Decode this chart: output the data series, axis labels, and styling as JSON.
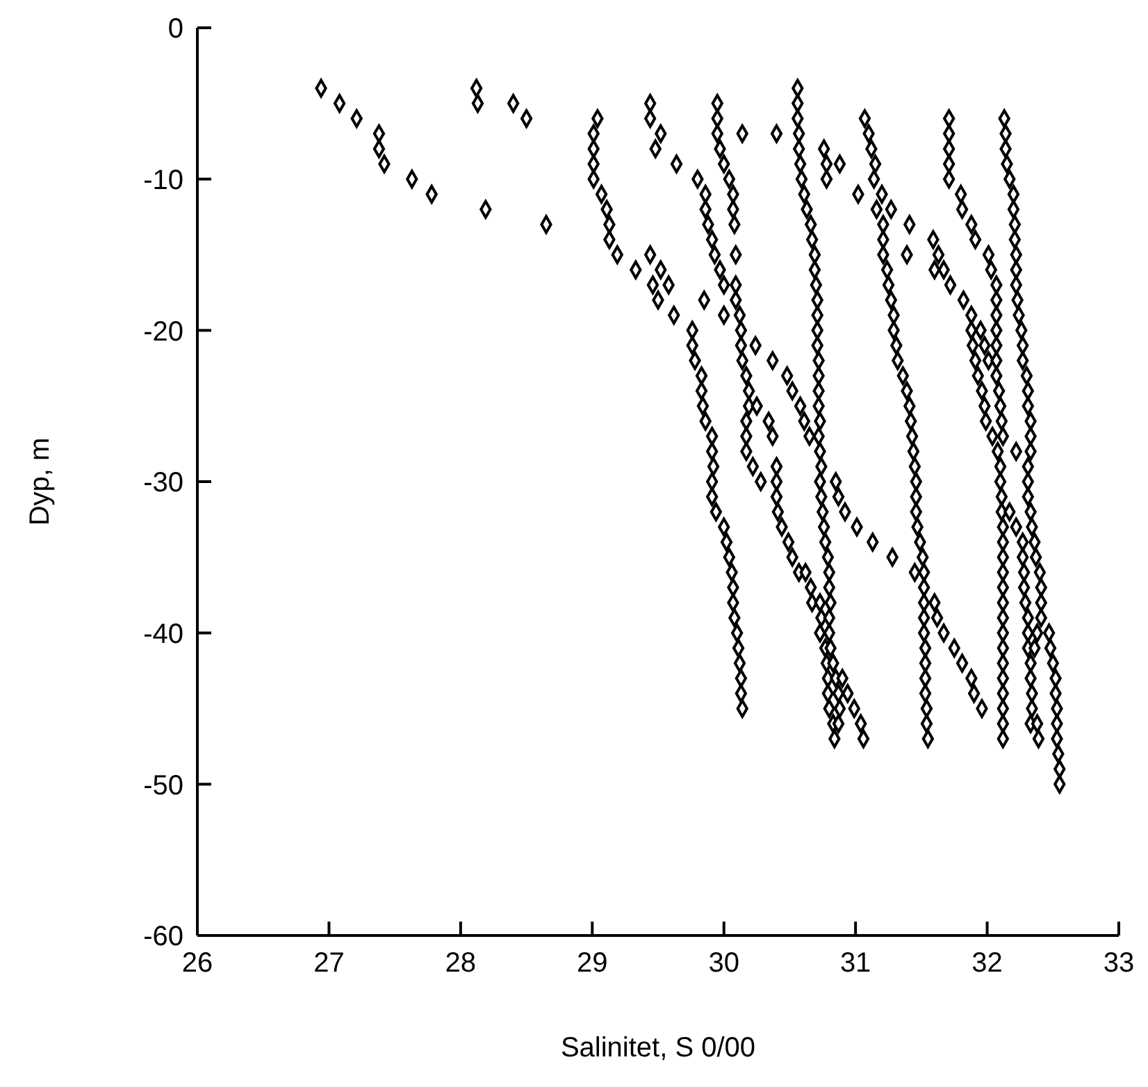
{
  "chart_data": {
    "type": "scatter",
    "xlabel": "Salinitet, S 0/00",
    "ylabel": "Dyp, m",
    "xlim": [
      26,
      33
    ],
    "xticks": [
      26,
      27,
      28,
      29,
      30,
      31,
      32,
      33
    ],
    "ylim": [
      -60,
      0
    ],
    "yticks": [
      -60,
      -50,
      -40,
      -30,
      -20,
      -10,
      0
    ],
    "marker": "diamond",
    "grid": false,
    "legend": false,
    "series": [
      {
        "color": "#000000",
        "x": [
          26.94,
          28.12,
          30.56,
          27.08,
          28.13,
          28.4,
          29.44,
          29.95,
          30.56,
          27.21,
          28.5,
          29.04,
          29.44,
          29.95,
          30.56,
          31.07,
          31.71,
          32.13,
          27.38,
          29.01,
          29.52,
          29.95,
          30.14,
          30.4,
          30.57,
          31.1,
          31.71,
          32.14,
          27.38,
          29.01,
          29.48,
          29.97,
          30.57,
          30.76,
          31.12,
          31.71,
          32.14,
          27.42,
          29.01,
          29.64,
          30.0,
          30.58,
          30.78,
          30.88,
          31.15,
          31.71,
          32.15,
          27.63,
          29.01,
          29.8,
          30.04,
          30.59,
          30.78,
          31.14,
          31.71,
          32.17,
          27.78,
          29.07,
          29.86,
          30.07,
          30.61,
          31.02,
          31.2,
          31.8,
          32.2,
          28.19,
          29.11,
          29.86,
          30.07,
          30.63,
          31.16,
          31.27,
          31.81,
          32.2,
          28.65,
          29.13,
          29.88,
          30.08,
          30.66,
          31.21,
          31.41,
          31.88,
          32.21,
          29.13,
          29.91,
          30.67,
          31.21,
          31.59,
          31.91,
          32.21,
          29.19,
          29.44,
          29.93,
          30.09,
          30.69,
          31.21,
          31.39,
          31.63,
          32.01,
          32.22,
          29.33,
          29.52,
          29.97,
          30.69,
          31.24,
          31.6,
          31.67,
          32.03,
          32.22,
          29.46,
          29.58,
          30.0,
          30.09,
          30.7,
          31.25,
          31.72,
          32.07,
          32.22,
          29.5,
          29.85,
          30.09,
          30.71,
          31.27,
          31.82,
          32.07,
          32.23,
          29.62,
          30.0,
          30.12,
          30.71,
          31.29,
          31.88,
          32.07,
          32.24,
          29.76,
          30.13,
          30.71,
          31.29,
          31.88,
          31.95,
          32.07,
          32.26,
          29.76,
          30.13,
          30.24,
          30.71,
          31.31,
          31.89,
          31.98,
          32.07,
          32.27,
          29.78,
          30.14,
          30.37,
          30.72,
          31.32,
          31.91,
          32.01,
          32.07,
          32.27,
          29.83,
          30.17,
          30.48,
          30.72,
          31.36,
          31.93,
          32.07,
          32.3,
          29.83,
          30.19,
          30.52,
          30.72,
          31.39,
          31.96,
          32.09,
          32.31,
          29.84,
          30.19,
          30.25,
          30.58,
          30.72,
          31.41,
          31.98,
          32.1,
          32.31,
          29.86,
          30.17,
          30.34,
          30.61,
          30.73,
          31.42,
          31.99,
          32.11,
          32.33,
          29.91,
          30.17,
          30.37,
          30.65,
          30.72,
          31.43,
          32.04,
          32.12,
          32.33,
          29.91,
          30.17,
          30.73,
          31.44,
          32.08,
          32.22,
          32.33,
          29.92,
          30.22,
          30.4,
          30.74,
          31.45,
          32.1,
          32.31,
          29.91,
          30.28,
          30.4,
          30.73,
          30.85,
          31.46,
          32.1,
          32.31,
          29.91,
          30.4,
          30.74,
          30.87,
          31.46,
          32.11,
          32.31,
          29.94,
          30.41,
          30.75,
          30.92,
          31.46,
          32.11,
          32.17,
          32.33,
          30.0,
          30.44,
          30.76,
          31.01,
          31.47,
          32.12,
          32.22,
          32.34,
          30.02,
          30.49,
          30.77,
          31.13,
          31.49,
          32.12,
          32.27,
          32.36,
          30.04,
          30.52,
          30.79,
          31.28,
          31.51,
          32.12,
          32.27,
          32.37,
          30.06,
          30.57,
          30.62,
          30.8,
          31.45,
          31.52,
          32.12,
          32.28,
          32.4,
          30.07,
          30.66,
          30.8,
          31.52,
          32.12,
          32.28,
          32.41,
          30.07,
          30.67,
          30.73,
          30.81,
          31.52,
          31.6,
          32.12,
          32.29,
          32.41,
          30.08,
          30.74,
          30.8,
          31.52,
          31.62,
          32.12,
          32.31,
          32.41,
          30.1,
          30.73,
          30.8,
          31.52,
          31.67,
          32.12,
          32.31,
          32.38,
          32.47,
          30.11,
          30.77,
          30.81,
          31.53,
          31.75,
          32.12,
          32.31,
          32.36,
          32.48,
          30.12,
          30.78,
          30.83,
          31.53,
          31.81,
          32.12,
          32.33,
          32.5,
          30.13,
          30.79,
          30.85,
          30.9,
          31.53,
          31.88,
          32.12,
          32.33,
          32.52,
          30.13,
          30.79,
          30.87,
          30.94,
          31.53,
          31.9,
          32.12,
          32.34,
          32.52,
          30.14,
          30.8,
          30.88,
          30.99,
          31.54,
          31.96,
          32.12,
          32.34,
          32.53,
          30.83,
          30.87,
          31.04,
          31.54,
          32.12,
          32.33,
          32.38,
          32.53,
          30.84,
          31.06,
          31.55,
          32.12,
          32.39,
          32.53,
          32.54,
          32.55,
          32.55
        ],
        "values": [
          -4,
          -4,
          -4,
          -5,
          -5,
          -5,
          -5,
          -5,
          -5,
          -6,
          -6,
          -6,
          -6,
          -6,
          -6,
          -6,
          -6,
          -6,
          -7,
          -7,
          -7,
          -7,
          -7,
          -7,
          -7,
          -7,
          -7,
          -7,
          -8,
          -8,
          -8,
          -8,
          -8,
          -8,
          -8,
          -8,
          -8,
          -9,
          -9,
          -9,
          -9,
          -9,
          -9,
          -9,
          -9,
          -9,
          -9,
          -10,
          -10,
          -10,
          -10,
          -10,
          -10,
          -10,
          -10,
          -10,
          -11,
          -11,
          -11,
          -11,
          -11,
          -11,
          -11,
          -11,
          -11,
          -12,
          -12,
          -12,
          -12,
          -12,
          -12,
          -12,
          -12,
          -12,
          -13,
          -13,
          -13,
          -13,
          -13,
          -13,
          -13,
          -13,
          -13,
          -14,
          -14,
          -14,
          -14,
          -14,
          -14,
          -14,
          -15,
          -15,
          -15,
          -15,
          -15,
          -15,
          -15,
          -15,
          -15,
          -15,
          -16,
          -16,
          -16,
          -16,
          -16,
          -16,
          -16,
          -16,
          -16,
          -17,
          -17,
          -17,
          -17,
          -17,
          -17,
          -17,
          -17,
          -17,
          -18,
          -18,
          -18,
          -18,
          -18,
          -18,
          -18,
          -18,
          -19,
          -19,
          -19,
          -19,
          -19,
          -19,
          -19,
          -19,
          -20,
          -20,
          -20,
          -20,
          -20,
          -20,
          -20,
          -20,
          -21,
          -21,
          -21,
          -21,
          -21,
          -21,
          -21,
          -21,
          -21,
          -22,
          -22,
          -22,
          -22,
          -22,
          -22,
          -22,
          -22,
          -22,
          -23,
          -23,
          -23,
          -23,
          -23,
          -23,
          -23,
          -23,
          -24,
          -24,
          -24,
          -24,
          -24,
          -24,
          -24,
          -24,
          -25,
          -25,
          -25,
          -25,
          -25,
          -25,
          -25,
          -25,
          -25,
          -26,
          -26,
          -26,
          -26,
          -26,
          -26,
          -26,
          -26,
          -26,
          -27,
          -27,
          -27,
          -27,
          -27,
          -27,
          -27,
          -27,
          -27,
          -28,
          -28,
          -28,
          -28,
          -28,
          -28,
          -28,
          -29,
          -29,
          -29,
          -29,
          -29,
          -29,
          -29,
          -30,
          -30,
          -30,
          -30,
          -30,
          -30,
          -30,
          -30,
          -31,
          -31,
          -31,
          -31,
          -31,
          -31,
          -31,
          -32,
          -32,
          -32,
          -32,
          -32,
          -32,
          -32,
          -32,
          -33,
          -33,
          -33,
          -33,
          -33,
          -33,
          -33,
          -33,
          -34,
          -34,
          -34,
          -34,
          -34,
          -34,
          -34,
          -34,
          -35,
          -35,
          -35,
          -35,
          -35,
          -35,
          -35,
          -35,
          -36,
          -36,
          -36,
          -36,
          -36,
          -36,
          -36,
          -36,
          -36,
          -37,
          -37,
          -37,
          -37,
          -37,
          -37,
          -37,
          -38,
          -38,
          -38,
          -38,
          -38,
          -38,
          -38,
          -38,
          -38,
          -39,
          -39,
          -39,
          -39,
          -39,
          -39,
          -39,
          -39,
          -40,
          -40,
          -40,
          -40,
          -40,
          -40,
          -40,
          -40,
          -40,
          -41,
          -41,
          -41,
          -41,
          -41,
          -41,
          -41,
          -41,
          -41,
          -42,
          -42,
          -42,
          -42,
          -42,
          -42,
          -42,
          -42,
          -43,
          -43,
          -43,
          -43,
          -43,
          -43,
          -43,
          -43,
          -43,
          -44,
          -44,
          -44,
          -44,
          -44,
          -44,
          -44,
          -44,
          -44,
          -45,
          -45,
          -45,
          -45,
          -45,
          -45,
          -45,
          -45,
          -45,
          -46,
          -46,
          -46,
          -46,
          -46,
          -46,
          -46,
          -46,
          -47,
          -47,
          -47,
          -47,
          -47,
          -47,
          -48,
          -49,
          -50
        ]
      }
    ]
  }
}
